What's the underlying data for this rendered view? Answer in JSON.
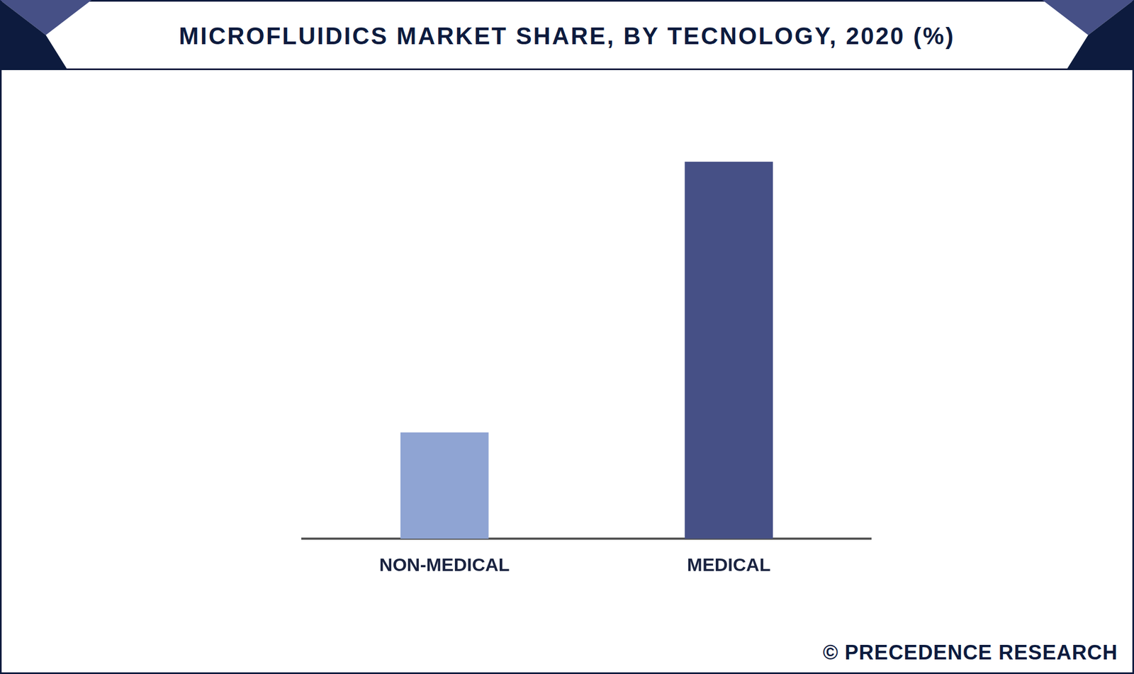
{
  "chart_data": {
    "type": "bar",
    "title": "MICROFLUIDICS MARKET SHARE, BY TECNOLOGY, 2020 (%)",
    "source": "© PRECEDENCE RESEARCH",
    "categories": [
      "NON-MEDICAL",
      "MEDICAL"
    ],
    "values": [
      22,
      78
    ],
    "colors": [
      "#8fa4d3",
      "#465086"
    ],
    "ylim": [
      0,
      80
    ],
    "yticks": [
      0,
      80
    ],
    "grid": false,
    "tick_labels": "x"
  }
}
